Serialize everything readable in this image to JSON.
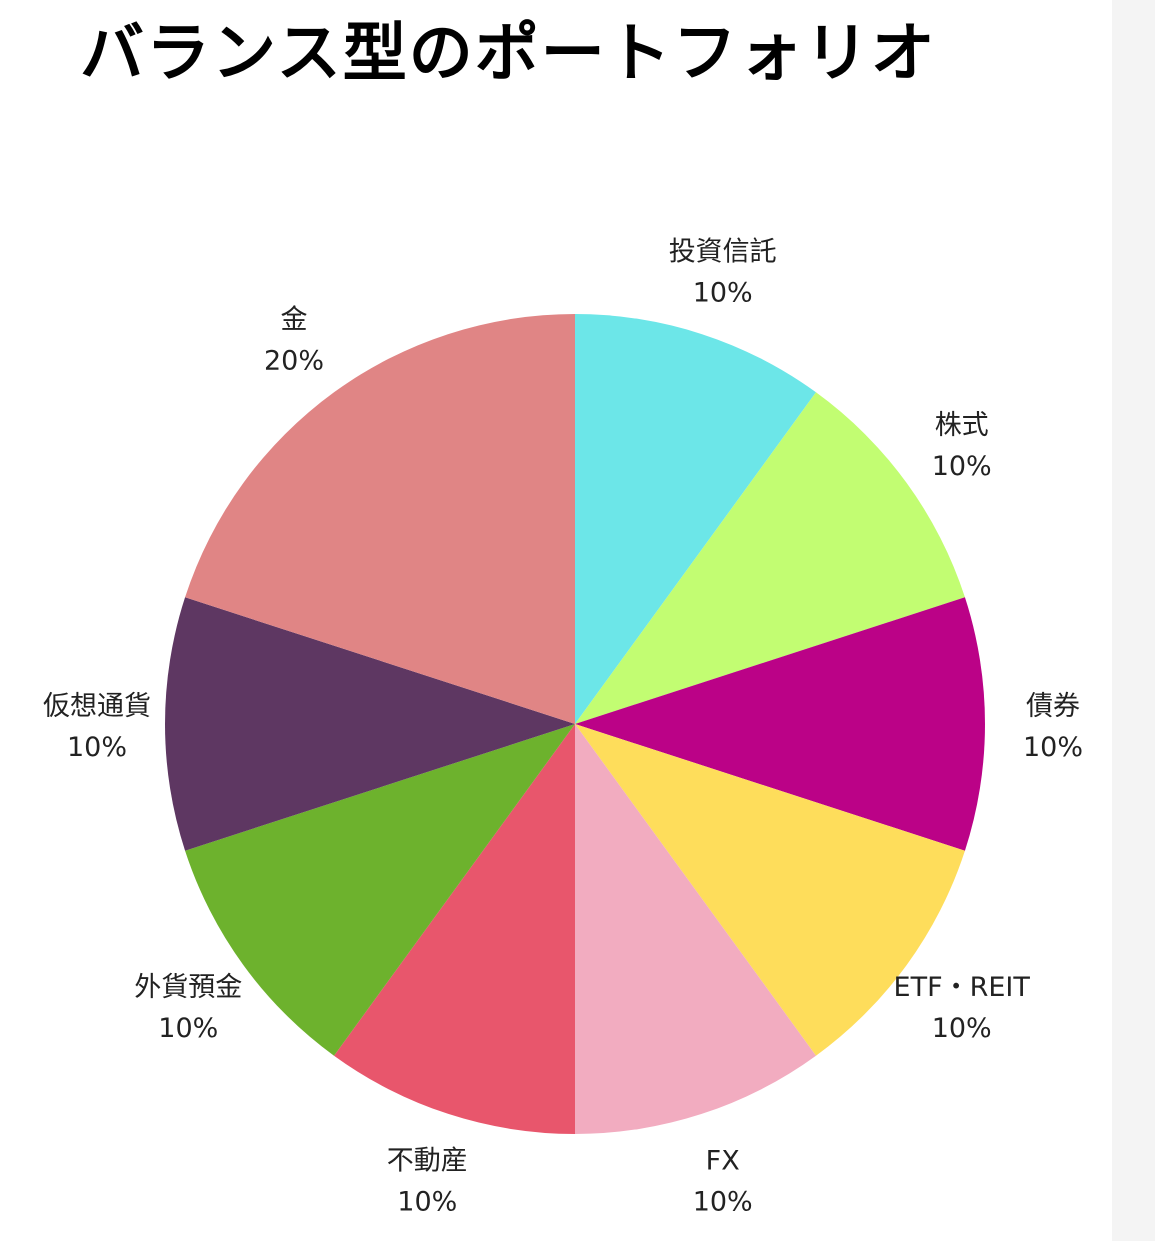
{
  "chart_data": {
    "type": "pie",
    "title": "バランス型のポートフォリオ",
    "slices": [
      {
        "label": "投資信託",
        "value": 10,
        "value_label": "10%",
        "color": "#6ce6e8"
      },
      {
        "label": "株式",
        "value": 10,
        "value_label": "10%",
        "color": "#c2fd72"
      },
      {
        "label": "債券",
        "value": 10,
        "value_label": "10%",
        "color": "#bb0287"
      },
      {
        "label": "ETF・REIT",
        "value": 10,
        "value_label": "10%",
        "color": "#fedd5b"
      },
      {
        "label": "FX",
        "value": 10,
        "value_label": "10%",
        "color": "#f2acc0"
      },
      {
        "label": "不動産",
        "value": 10,
        "value_label": "10%",
        "color": "#e8566c"
      },
      {
        "label": "外貨預金",
        "value": 10,
        "value_label": "10%",
        "color": "#6db22d"
      },
      {
        "label": "仮想通貨",
        "value": 10,
        "value_label": "10%",
        "color": "#5e3762"
      },
      {
        "label": "金",
        "value": 20,
        "value_label": "20%",
        "color": "#e08585"
      }
    ],
    "start": "12 o'clock",
    "direction": "clockwise",
    "legend": "none"
  }
}
